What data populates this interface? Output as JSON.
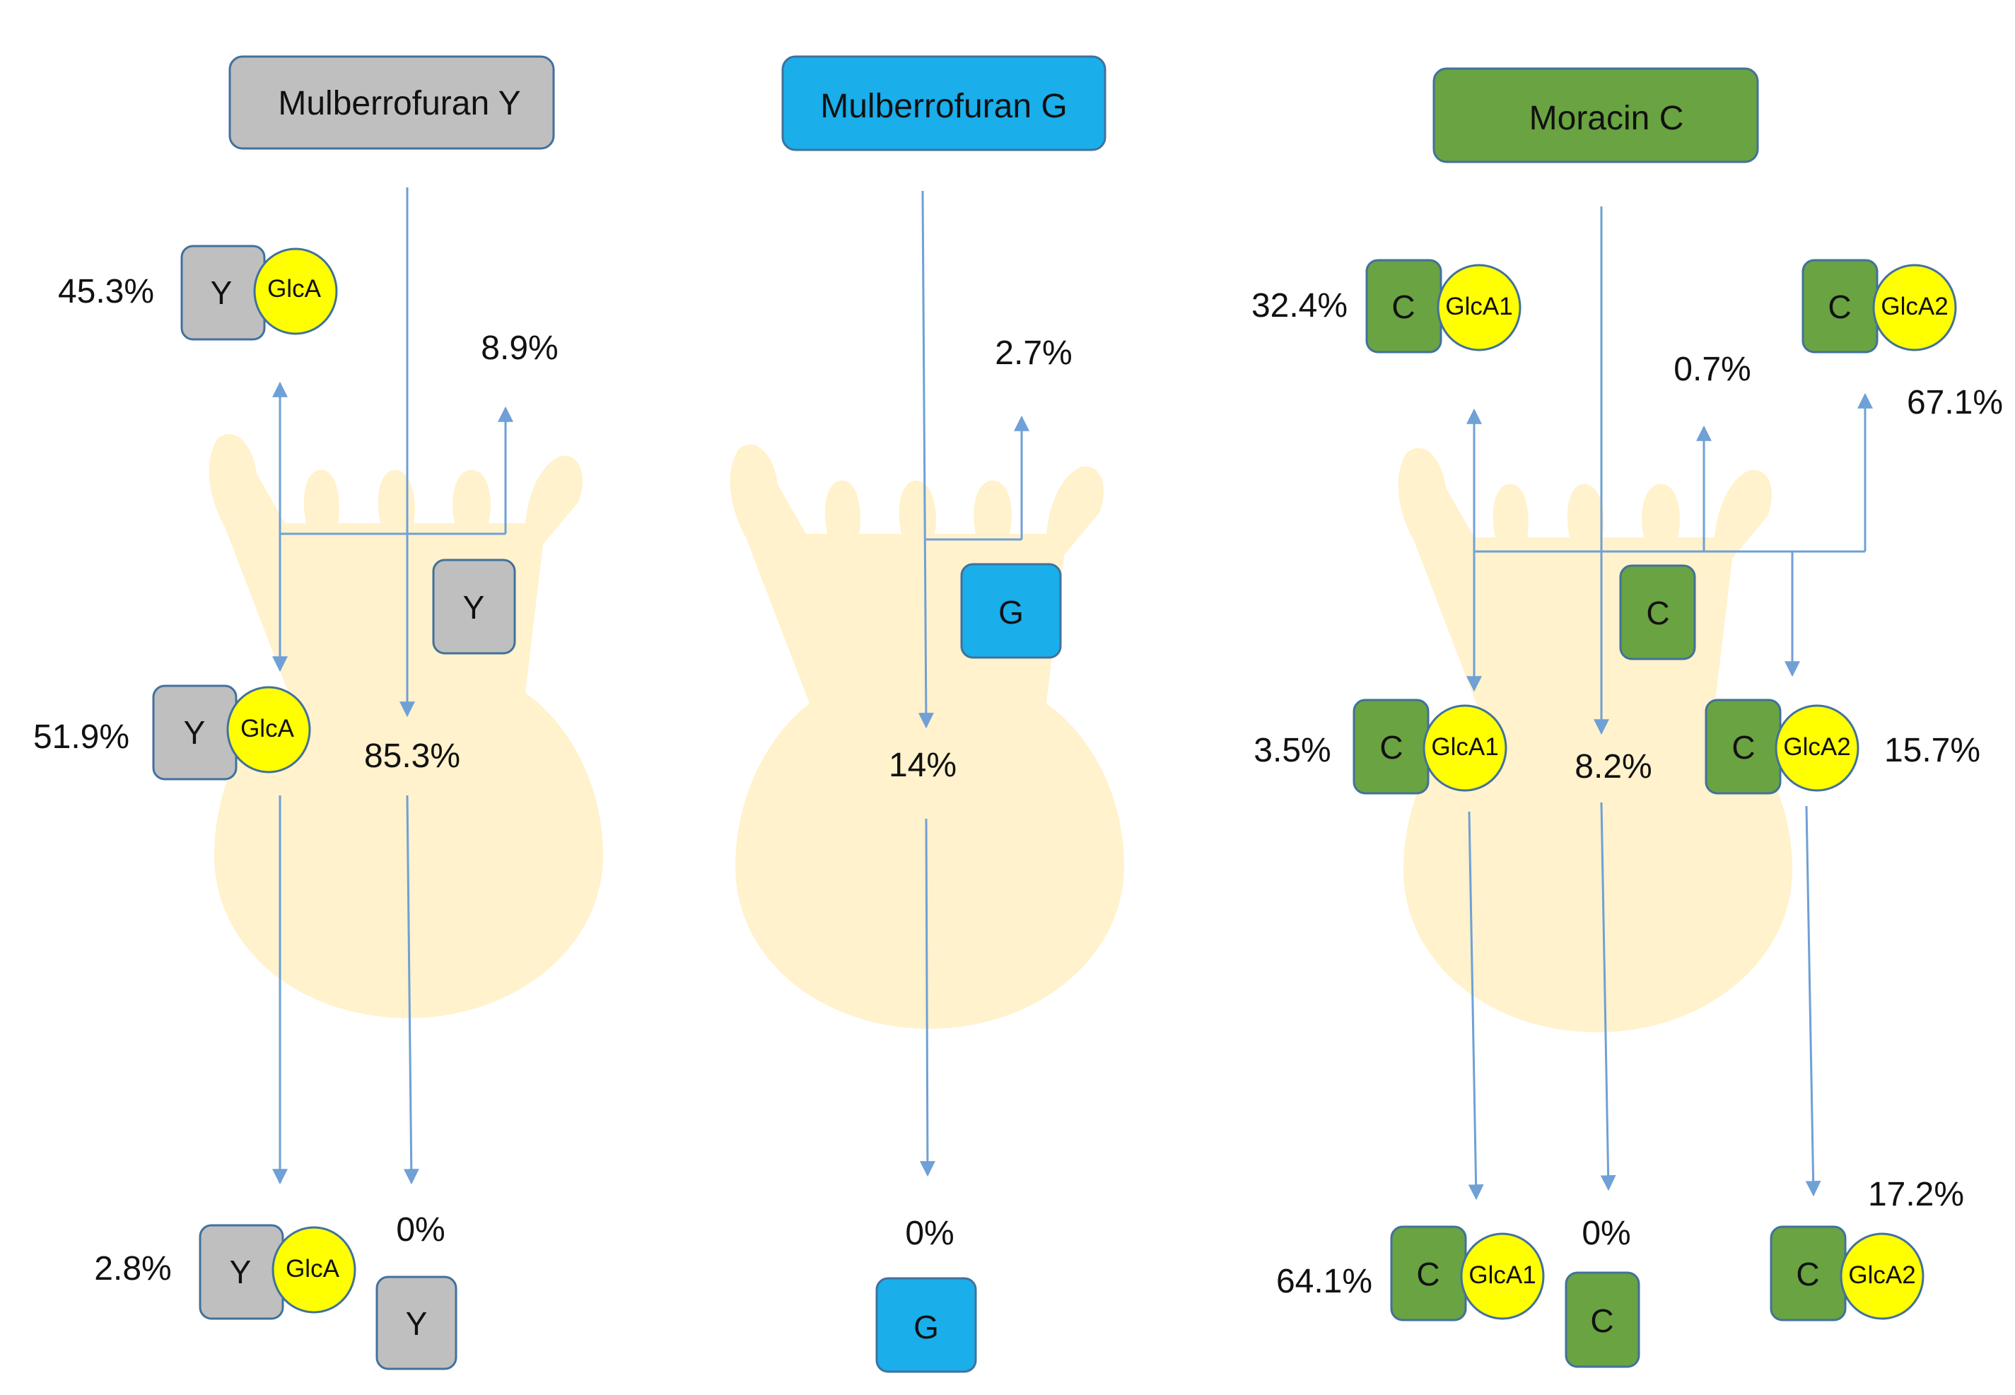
{
  "colors": {
    "grey": "#bfbfbf",
    "blue": "#1aaeea",
    "green": "#6aa341",
    "yellow": "#ffff00",
    "border": "#41719c",
    "arrow": "#6fa0d6",
    "organ": "#fff2cc"
  },
  "panels": [
    {
      "title": "Mulberrofuran Y",
      "aglycone": "Y",
      "glucuronide": "GlcA",
      "labels": {
        "top_glucuronide": "45.3%",
        "top_aglycone": "8.9%",
        "mid_glucuronide": "51.9%",
        "mid_aglycone": "85.3%",
        "bottom_glucuronide": "2.8%",
        "bottom_aglycone": "0%"
      }
    },
    {
      "title": "Mulberrofuran G",
      "aglycone": "G",
      "labels": {
        "top_aglycone": "2.7%",
        "mid_aglycone": "14%",
        "bottom_aglycone": "0%"
      }
    },
    {
      "title": "Moracin C",
      "aglycone": "C",
      "glucuronide1": "GlcA1",
      "glucuronide2": "GlcA2",
      "labels": {
        "top_glucuronide1": "32.4%",
        "top_aglycone": "0.7%",
        "top_glucuronide2": "67.1%",
        "mid_glucuronide1": "3.5%",
        "mid_aglycone": "8.2%",
        "mid_glucuronide2": "15.7%",
        "bottom_glucuronide1": "64.1%",
        "bottom_aglycone": "0%",
        "bottom_glucuronide2": "17.2%"
      }
    }
  ]
}
